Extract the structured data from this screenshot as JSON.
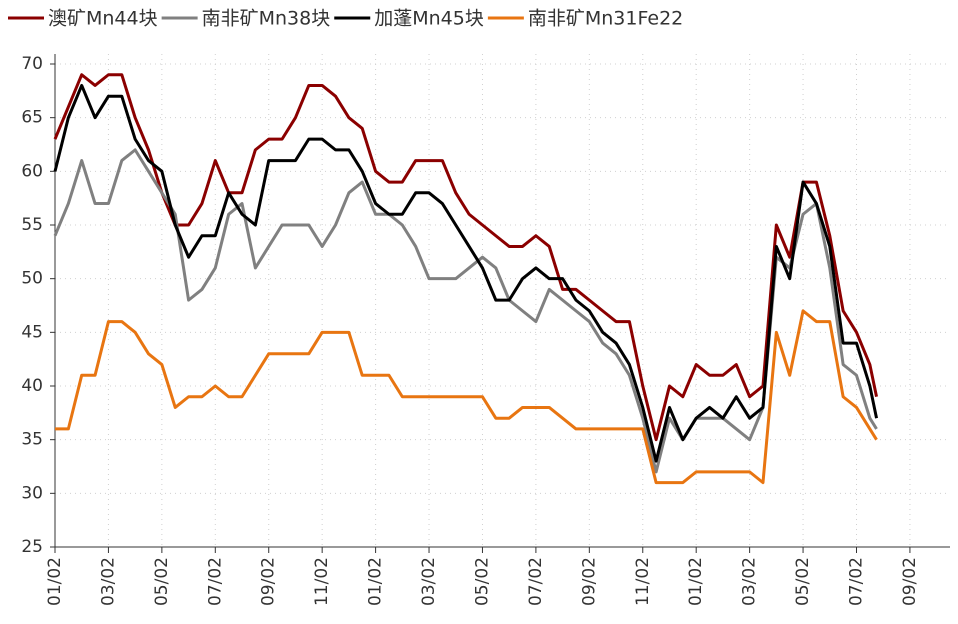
{
  "chart_data": {
    "type": "line",
    "legend": "top",
    "grid": true,
    "x": [
      0,
      0.5,
      1,
      1.5,
      2,
      2.5,
      3,
      3.5,
      4,
      4.5,
      5,
      5.5,
      6,
      6.5,
      7,
      7.5,
      8,
      8.5,
      9,
      9.5,
      10,
      10.5,
      11,
      11.5,
      12,
      12.5,
      13,
      13.5,
      14,
      14.5,
      15,
      15.5,
      16,
      16.5,
      17,
      17.5,
      18,
      18.5,
      19,
      19.5,
      20,
      20.5,
      21,
      21.5,
      22,
      22.5,
      23,
      23.5,
      24,
      24.5,
      25,
      25.5,
      26,
      26.5,
      27,
      27.5,
      28,
      28.5,
      29,
      29.5,
      30,
      30.5,
      30.75
    ],
    "xlim": [
      0,
      33.5
    ],
    "xticks": [
      {
        "value": 0,
        "label": "01/02"
      },
      {
        "value": 2,
        "label": "03/02"
      },
      {
        "value": 4,
        "label": "05/02"
      },
      {
        "value": 6,
        "label": "07/02"
      },
      {
        "value": 8,
        "label": "09/02"
      },
      {
        "value": 10,
        "label": "11/02"
      },
      {
        "value": 12,
        "label": "01/02"
      },
      {
        "value": 14,
        "label": "03/02"
      },
      {
        "value": 16,
        "label": "05/02"
      },
      {
        "value": 18,
        "label": "07/02"
      },
      {
        "value": 20,
        "label": "09/02"
      },
      {
        "value": 22,
        "label": "11/02"
      },
      {
        "value": 24,
        "label": "01/02"
      },
      {
        "value": 26,
        "label": "03/02"
      },
      {
        "value": 28,
        "label": "05/02"
      },
      {
        "value": 30,
        "label": "07/02"
      },
      {
        "value": 32,
        "label": "09/02"
      }
    ],
    "ylim": [
      25,
      70
    ],
    "yticks": [
      25,
      30,
      35,
      40,
      45,
      50,
      55,
      60,
      65,
      70
    ],
    "series": [
      {
        "name": "澳矿Mn44块",
        "color": "#8b0000",
        "values": [
          63,
          66,
          69,
          68,
          69,
          69,
          65,
          62,
          58,
          55,
          55,
          57,
          61,
          58,
          58,
          62,
          63,
          63,
          65,
          68,
          68,
          67,
          65,
          64,
          60,
          59,
          59,
          61,
          61,
          61,
          58,
          56,
          55,
          54,
          53,
          53,
          54,
          53,
          49,
          49,
          48,
          47,
          46,
          46,
          40,
          35,
          40,
          39,
          42,
          41,
          41,
          42,
          39,
          40,
          55,
          52,
          59,
          59,
          54,
          47,
          45,
          42,
          39
        ]
      },
      {
        "name": "南非矿Mn38块",
        "color": "#808080",
        "values": [
          54,
          57,
          61,
          57,
          57,
          61,
          62,
          60,
          58,
          56,
          48,
          49,
          51,
          56,
          57,
          51,
          53,
          55,
          55,
          55,
          53,
          55,
          58,
          59,
          56,
          56,
          55,
          53,
          50,
          50,
          50,
          51,
          52,
          51,
          48,
          47,
          46,
          49,
          48,
          47,
          46,
          44,
          43,
          41,
          37,
          32,
          37,
          35,
          37,
          37,
          37,
          36,
          35,
          38,
          52,
          51,
          56,
          57,
          51,
          42,
          41,
          37,
          36
        ]
      },
      {
        "name": "加蓬Mn45块",
        "color": "#000000",
        "values": [
          60,
          65,
          68,
          65,
          67,
          67,
          63,
          61,
          60,
          55,
          52,
          54,
          54,
          58,
          56,
          55,
          61,
          61,
          61,
          63,
          63,
          62,
          62,
          60,
          57,
          56,
          56,
          58,
          58,
          57,
          55,
          53,
          51,
          48,
          48,
          50,
          51,
          50,
          50,
          48,
          47,
          45,
          44,
          42,
          38,
          33,
          38,
          35,
          37,
          38,
          37,
          39,
          37,
          38,
          53,
          50,
          59,
          57,
          53,
          44,
          44,
          40,
          37
        ]
      },
      {
        "name": "南非矿Mn31Fe22",
        "color": "#e87511",
        "values": [
          36,
          36,
          41,
          41,
          46,
          46,
          45,
          43,
          42,
          38,
          39,
          39,
          40,
          39,
          39,
          41,
          43,
          43,
          43,
          43,
          45,
          45,
          45,
          41,
          41,
          41,
          39,
          39,
          39,
          39,
          39,
          39,
          39,
          37,
          37,
          38,
          38,
          38,
          37,
          36,
          36,
          36,
          36,
          36,
          36,
          31,
          31,
          31,
          32,
          32,
          32,
          32,
          32,
          31,
          45,
          41,
          47,
          46,
          46,
          39,
          38,
          36,
          35
        ]
      }
    ]
  }
}
